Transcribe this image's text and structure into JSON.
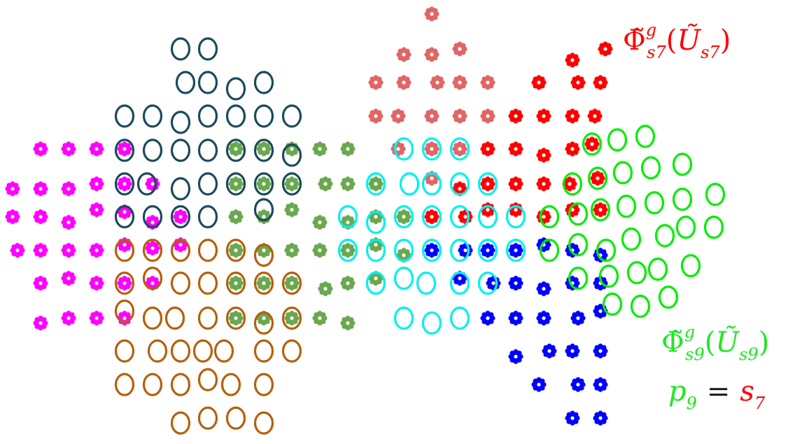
{
  "labels": {
    "top": {
      "color": "#ff0000",
      "symbol": "Φ̃",
      "sup": "g",
      "sub": "s7",
      "open": "(",
      "arg": "Ũ",
      "argsub": "s7",
      "close": ")"
    },
    "bottom": {
      "color": "#22e622",
      "symbol": "Φ̃",
      "sup": "g",
      "sub": "s9",
      "open": "(",
      "arg": "Ũ",
      "argsub": "s9",
      "close": ")"
    },
    "equation": {
      "lhs": "p",
      "lhs_sub": "9",
      "lhs_color": "#22e622",
      "op": "=",
      "rhs": "s",
      "rhs_sub": "7",
      "rhs_color": "#ff0000"
    }
  },
  "groups": [
    {
      "name": "dark-teal-circles",
      "marker": "circle",
      "color": "#1b4a5c"
    },
    {
      "name": "brown-circles",
      "marker": "circle",
      "color": "#b5600c"
    },
    {
      "name": "magenta-stars",
      "marker": "star",
      "color": "#ff00ff"
    },
    {
      "name": "olive-stars",
      "marker": "star",
      "color": "#6aa84f"
    },
    {
      "name": "cyan-circles",
      "marker": "circle",
      "color": "#00f0f0"
    },
    {
      "name": "salmon-stars",
      "marker": "star",
      "color": "#e06666"
    },
    {
      "name": "red-stars",
      "marker": "star",
      "color": "#ff0000"
    },
    {
      "name": "blue-stars",
      "marker": "star",
      "color": "#0000ff"
    },
    {
      "name": "green-circles",
      "marker": "circle",
      "color": "#00ee00"
    }
  ]
}
